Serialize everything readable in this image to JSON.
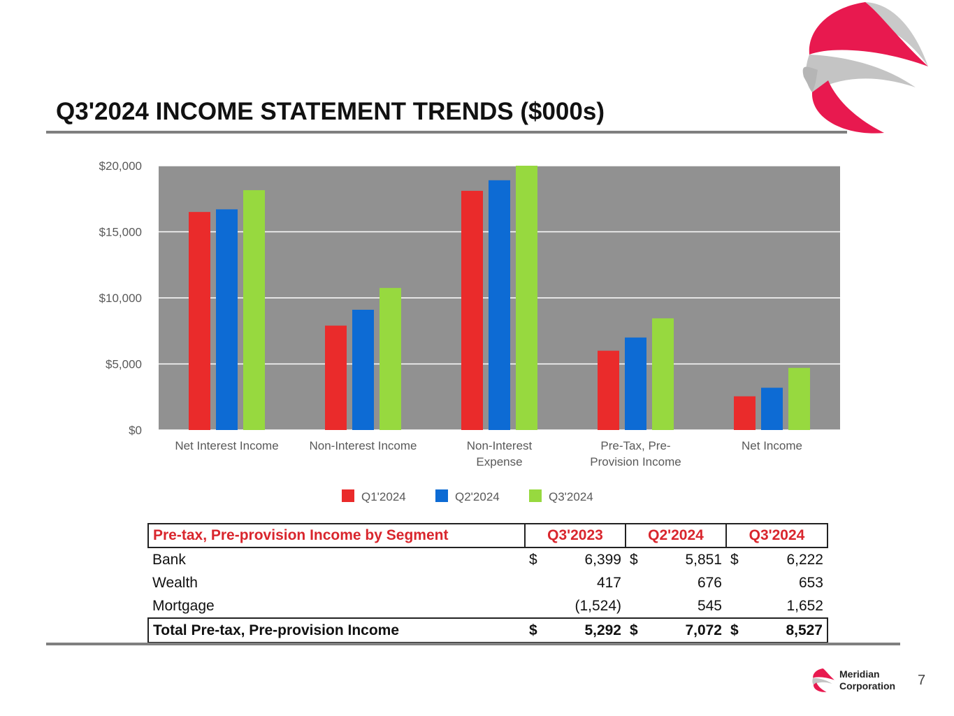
{
  "slide": {
    "title": "Q3'2024 INCOME STATEMENT TRENDS ($000s)",
    "page_number": "7",
    "company_line1": "Meridian",
    "company_line2": "Corporation"
  },
  "colors": {
    "brand_red": "#e8194f",
    "logo_gray": "#c4c4c4",
    "plot_bg": "#919191",
    "axis_text": "#595959",
    "table_header": "#d9262d",
    "rule": "#7f7f7f"
  },
  "chart_data": {
    "type": "bar",
    "categories": [
      "Net Interest Income",
      "Non-Interest Income",
      "Non-Interest Expense",
      "Pre-Tax, Pre-Provision Income",
      "Net Income"
    ],
    "category_lines": [
      [
        "Net Interest Income"
      ],
      [
        "Non-Interest Income"
      ],
      [
        "Non-Interest",
        "Expense"
      ],
      [
        "Pre-Tax, Pre-",
        "Provision Income"
      ],
      [
        "Net Income"
      ]
    ],
    "series": [
      {
        "name": "Q1'2024",
        "color": "#ea2b2b",
        "values": [
          16500,
          7900,
          18100,
          6000,
          2550
        ]
      },
      {
        "name": "Q2'2024",
        "color": "#0d6bd4",
        "values": [
          16700,
          9100,
          18900,
          7000,
          3200
        ]
      },
      {
        "name": "Q3'2024",
        "color": "#97d93f",
        "values": [
          18150,
          10750,
          20000,
          8450,
          4700
        ]
      }
    ],
    "y_ticks": [
      "$0",
      "$5,000",
      "$10,000",
      "$15,000",
      "$20,000"
    ],
    "ylim": [
      0,
      20000
    ],
    "grid": true,
    "legend_position": "bottom-center"
  },
  "segment_table": {
    "headers": [
      "Pre-tax, Pre-provision Income by Segment",
      "Q3'2023",
      "Q2'2024",
      "Q3'2024"
    ],
    "rows": [
      {
        "label": "Bank",
        "cells": [
          [
            "$",
            "6,399"
          ],
          [
            "$",
            "5,851"
          ],
          [
            "$",
            "6,222"
          ]
        ]
      },
      {
        "label": "Wealth",
        "cells": [
          [
            "",
            "417"
          ],
          [
            "",
            "676"
          ],
          [
            "",
            "653"
          ]
        ]
      },
      {
        "label": "Mortgage",
        "cells": [
          [
            "",
            "(1,524)"
          ],
          [
            "",
            "545"
          ],
          [
            "",
            "1,652"
          ]
        ]
      }
    ],
    "total": {
      "label": "Total Pre-tax, Pre-provision Income",
      "cells": [
        [
          "$",
          "5,292"
        ],
        [
          "$",
          "7,072"
        ],
        [
          "$",
          "8,527"
        ]
      ]
    }
  }
}
